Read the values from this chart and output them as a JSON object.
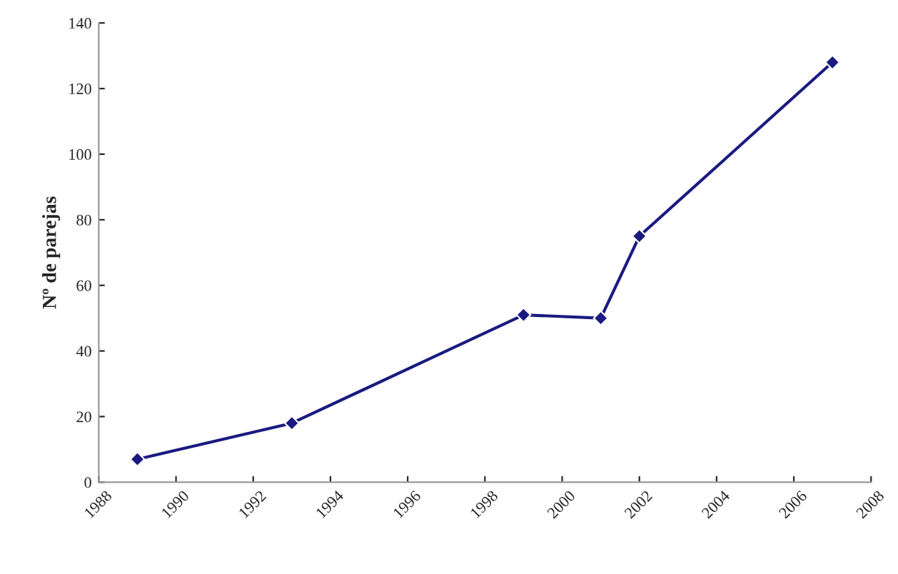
{
  "chart_data": {
    "type": "line",
    "ylabel": "Nº de parejas",
    "x": [
      1989,
      1993,
      1999,
      2001,
      2002,
      2007
    ],
    "series": [
      {
        "color": "#1a1a80",
        "values": [
          7,
          18,
          51,
          50,
          75,
          128
        ]
      }
    ],
    "xlim": [
      1988,
      2008
    ],
    "xticks": [
      1988,
      1990,
      1992,
      1994,
      1996,
      1998,
      2000,
      2002,
      2004,
      2006,
      2008
    ],
    "ylim": [
      0,
      140
    ],
    "yticks": [
      0,
      20,
      40,
      60,
      80,
      100,
      120,
      140
    ],
    "marker": "diamond",
    "grid": false,
    "legend": false
  }
}
